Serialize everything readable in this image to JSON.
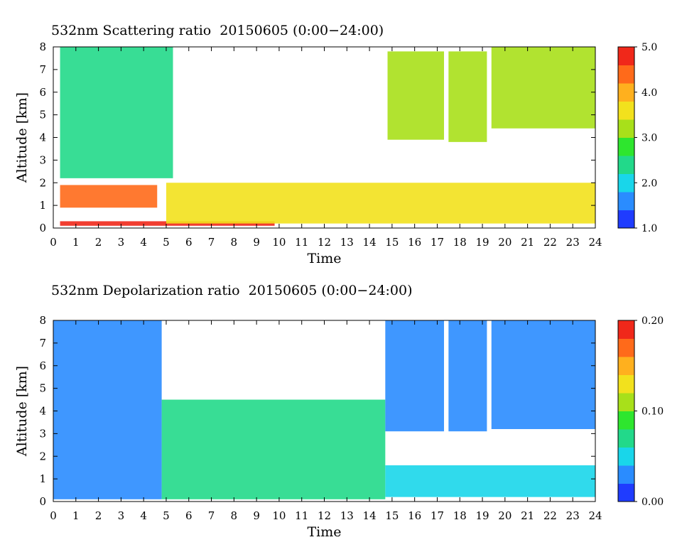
{
  "colors": {
    "scale": [
      "#1f3cff",
      "#2a8cff",
      "#19d6ea",
      "#22d98a",
      "#2ee62e",
      "#a8e01a",
      "#f2e11d",
      "#ffb01e",
      "#ff6a1a",
      "#f0281a"
    ],
    "plot_bg": "#ffffff"
  },
  "chart_data": [
    {
      "type": "heatmap",
      "title": "532nm Scattering ratio  20150605 (0:00−24:00)",
      "xlabel": "Time",
      "ylabel": "Altitude [km]",
      "xlim": [
        0,
        24
      ],
      "ylim": [
        0,
        8
      ],
      "x_ticks": [
        "0",
        "1",
        "2",
        "3",
        "4",
        "5",
        "6",
        "7",
        "8",
        "9",
        "10",
        "11",
        "12",
        "13",
        "14",
        "15",
        "16",
        "17",
        "18",
        "19",
        "20",
        "21",
        "22",
        "23",
        "24"
      ],
      "y_ticks": [
        "0",
        "1",
        "2",
        "3",
        "4",
        "5",
        "6",
        "7",
        "8"
      ],
      "colorbar": {
        "range": [
          1.0,
          5.0
        ],
        "labels": [
          "1.0",
          "2.0",
          "3.0",
          "4.0",
          "5.0"
        ]
      },
      "regions": [
        {
          "name": "low-cloud-layer",
          "x": [
            0.3,
            4.6
          ],
          "y": [
            0.9,
            1.9
          ],
          "value": 4.4
        },
        {
          "name": "upper-cloud-band-0-5",
          "x": [
            0.3,
            5.3
          ],
          "y": [
            2.2,
            8.0
          ],
          "value": 2.3
        },
        {
          "name": "near-surface-layer",
          "x": [
            0.3,
            9.8
          ],
          "y": [
            0.1,
            0.3
          ],
          "value": 4.6
        },
        {
          "name": "boundary-layer-band",
          "x": [
            5.0,
            24.0
          ],
          "y": [
            0.2,
            2.0
          ],
          "value": 3.6
        },
        {
          "name": "cirrus-15-17",
          "x": [
            14.8,
            17.3
          ],
          "y": [
            3.9,
            7.8
          ],
          "value": 3.2
        },
        {
          "name": "cirrus-17-19",
          "x": [
            17.5,
            19.2
          ],
          "y": [
            3.8,
            7.8
          ],
          "value": 3.2
        },
        {
          "name": "cirrus-19-24",
          "x": [
            19.4,
            24.0
          ],
          "y": [
            4.4,
            8.0
          ],
          "value": 3.3
        }
      ]
    },
    {
      "type": "heatmap",
      "title": "532nm Depolarization ratio  20150605 (0:00−24:00)",
      "xlabel": "Time",
      "ylabel": "Altitude [km]",
      "xlim": [
        0,
        24
      ],
      "ylim": [
        0,
        8
      ],
      "x_ticks": [
        "0",
        "1",
        "2",
        "3",
        "4",
        "5",
        "6",
        "7",
        "8",
        "9",
        "10",
        "11",
        "12",
        "13",
        "14",
        "15",
        "16",
        "17",
        "18",
        "19",
        "20",
        "21",
        "22",
        "23",
        "24"
      ],
      "y_ticks": [
        "0",
        "1",
        "2",
        "3",
        "4",
        "5",
        "6",
        "7",
        "8"
      ],
      "colorbar": {
        "range": [
          0.0,
          0.2
        ],
        "labels": [
          "0.00",
          "0.10",
          "0.20"
        ]
      },
      "regions": [
        {
          "name": "aerosol-layer-0-5",
          "x": [
            0.0,
            4.8
          ],
          "y": [
            0.1,
            8.0
          ],
          "value": 0.035
        },
        {
          "name": "aerosol-layer-5-15",
          "x": [
            4.8,
            14.7
          ],
          "y": [
            0.1,
            4.5
          ],
          "value": 0.08
        },
        {
          "name": "cirrus-15-17",
          "x": [
            14.7,
            17.3
          ],
          "y": [
            3.1,
            8.0
          ],
          "value": 0.025
        },
        {
          "name": "cirrus-17-19",
          "x": [
            17.5,
            19.2
          ],
          "y": [
            3.1,
            8.0
          ],
          "value": 0.025
        },
        {
          "name": "cirrus-19-24",
          "x": [
            19.4,
            24.0
          ],
          "y": [
            3.2,
            8.0
          ],
          "value": 0.03
        },
        {
          "name": "boundary-layer-15-24",
          "x": [
            14.7,
            24.0
          ],
          "y": [
            0.2,
            1.6
          ],
          "value": 0.05
        }
      ]
    }
  ]
}
